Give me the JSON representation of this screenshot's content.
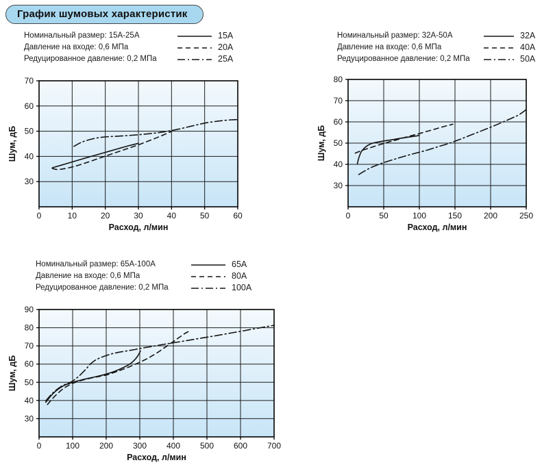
{
  "page": {
    "title": "График шумовых характеристик"
  },
  "style": {
    "plot_gradient_top": "#f4f9fd",
    "plot_gradient_bottom": "#c8e5f7",
    "line_color": "#141414",
    "grid_color": "#1c1c1c",
    "title_bg": "#a8d8f0"
  },
  "chart_data": [
    {
      "type": "line",
      "xlabel": "Расход, л/мин",
      "ylabel": "Шум, дБ",
      "xlim": [
        0,
        60
      ],
      "ylim": [
        20,
        70
      ],
      "xticks": [
        0,
        10,
        20,
        30,
        40,
        50,
        60
      ],
      "yticks": [
        30,
        40,
        50,
        60,
        70
      ],
      "grid": true,
      "legend_position": "above-left",
      "legend": [
        {
          "label": "Номинальный размер: 15А-25А",
          "dash": "solid",
          "size": "15А"
        },
        {
          "label": "Давление на входе: 0,6 МПа",
          "dash": "dashed",
          "size": "20А"
        },
        {
          "label": "Редуцированное давление: 0,2 МПа",
          "dash": "dashdot",
          "size": "25А"
        }
      ],
      "series": [
        {
          "name": "15А",
          "dash": "solid",
          "points": [
            [
              4,
              35.5
            ],
            [
              8,
              37
            ],
            [
              12,
              38.6
            ],
            [
              16,
              40.1
            ],
            [
              20,
              41.6
            ],
            [
              24,
              43.1
            ],
            [
              27,
              44.2
            ],
            [
              30,
              45.2
            ]
          ]
        },
        {
          "name": "20А",
          "dash": "dashed",
          "points": [
            [
              4,
              35.2
            ],
            [
              6,
              34.8
            ],
            [
              10,
              35.8
            ],
            [
              14,
              37.4
            ],
            [
              18,
              39.2
            ],
            [
              22,
              41
            ],
            [
              26,
              42.8
            ],
            [
              30,
              44.6
            ],
            [
              34,
              46.6
            ],
            [
              37,
              48.2
            ],
            [
              40,
              49.9
            ]
          ]
        },
        {
          "name": "25А",
          "dash": "dashdot",
          "points": [
            [
              10.5,
              44
            ],
            [
              13,
              45.7
            ],
            [
              16,
              46.9
            ],
            [
              19,
              47.6
            ],
            [
              22,
              47.9
            ],
            [
              26,
              48.2
            ],
            [
              30,
              48.6
            ],
            [
              34,
              49.1
            ],
            [
              38,
              49.8
            ],
            [
              42,
              50.8
            ],
            [
              46,
              52
            ],
            [
              50,
              53.2
            ],
            [
              54,
              54
            ],
            [
              58,
              54.5
            ],
            [
              60,
              54.6
            ]
          ]
        }
      ]
    },
    {
      "type": "line",
      "xlabel": "Расход, л/мин",
      "ylabel": "Шум, дБ",
      "xlim": [
        0,
        250
      ],
      "ylim": [
        20,
        80
      ],
      "xticks": [
        0,
        50,
        100,
        150,
        200,
        250
      ],
      "yticks": [
        30,
        40,
        50,
        60,
        70,
        80
      ],
      "grid": true,
      "legend_position": "above-left",
      "legend": [
        {
          "label": "Номинальный размер: 32А-50А",
          "dash": "solid",
          "size": "32А"
        },
        {
          "label": "Давление на входе: 0,6 МПа",
          "dash": "dashed",
          "size": "40А"
        },
        {
          "label": "Редуцированное давление: 0,2 МПа",
          "dash": "dashdot",
          "size": "50А"
        }
      ],
      "series": [
        {
          "name": "32А",
          "dash": "solid",
          "points": [
            [
              13,
              40.3
            ],
            [
              15,
              43
            ],
            [
              18,
              45.6
            ],
            [
              22,
              47.4
            ],
            [
              27,
              48.8
            ],
            [
              33,
              49.8
            ],
            [
              40,
              50.4
            ],
            [
              50,
              51
            ],
            [
              60,
              51.5
            ],
            [
              70,
              52.1
            ],
            [
              80,
              52.6
            ],
            [
              90,
              53.1
            ],
            [
              100,
              53.6
            ]
          ]
        },
        {
          "name": "40А",
          "dash": "dashed",
          "points": [
            [
              10,
              45.3
            ],
            [
              20,
              46.6
            ],
            [
              30,
              47.7
            ],
            [
              40,
              48.8
            ],
            [
              50,
              49.8
            ],
            [
              60,
              50.8
            ],
            [
              70,
              51.7
            ],
            [
              80,
              52.7
            ],
            [
              90,
              53.6
            ],
            [
              100,
              54.5
            ],
            [
              110,
              55.5
            ],
            [
              120,
              56.4
            ],
            [
              130,
              57.4
            ],
            [
              140,
              58.3
            ],
            [
              147,
              58.9
            ]
          ]
        },
        {
          "name": "50А",
          "dash": "dashdot",
          "points": [
            [
              15,
              35.2
            ],
            [
              25,
              37.2
            ],
            [
              35,
              38.9
            ],
            [
              50,
              40.8
            ],
            [
              65,
              42.4
            ],
            [
              80,
              43.9
            ],
            [
              95,
              45.3
            ],
            [
              110,
              46.6
            ],
            [
              125,
              48.2
            ],
            [
              140,
              49.7
            ],
            [
              155,
              51.5
            ],
            [
              170,
              53.5
            ],
            [
              185,
              55.5
            ],
            [
              200,
              57.5
            ],
            [
              215,
              59.6
            ],
            [
              230,
              61.8
            ],
            [
              240,
              63.4
            ],
            [
              250,
              65.8
            ]
          ]
        }
      ]
    },
    {
      "type": "line",
      "xlabel": "Расход, л/мин",
      "ylabel": "Шум, дБ",
      "xlim": [
        0,
        700
      ],
      "ylim": [
        20,
        90
      ],
      "xticks": [
        0,
        100,
        200,
        300,
        400,
        500,
        600,
        700
      ],
      "yticks": [
        30,
        40,
        50,
        60,
        70,
        80,
        90
      ],
      "grid": true,
      "legend_position": "above-left",
      "legend": [
        {
          "label": "Номинальный размер: 65А-100А",
          "dash": "solid",
          "size": "65А"
        },
        {
          "label": "Давление на входе: 0,6 МПа",
          "dash": "dashed",
          "size": "80А"
        },
        {
          "label": "Редуцированное давление: 0,2 МПа",
          "dash": "dashdot",
          "size": "100А"
        }
      ],
      "series": [
        {
          "name": "65А",
          "dash": "solid",
          "points": [
            [
              20,
              39
            ],
            [
              35,
              42.5
            ],
            [
              50,
              45.2
            ],
            [
              65,
              47.2
            ],
            [
              80,
              48.7
            ],
            [
              100,
              50
            ],
            [
              120,
              51
            ],
            [
              145,
              52.1
            ],
            [
              170,
              53.1
            ],
            [
              200,
              54.5
            ],
            [
              225,
              56
            ],
            [
              250,
              58
            ],
            [
              270,
              60
            ],
            [
              285,
              62.4
            ],
            [
              295,
              64.8
            ],
            [
              302,
              67.2
            ]
          ]
        },
        {
          "name": "80А",
          "dash": "dashed",
          "points": [
            [
              25,
              37.8
            ],
            [
              40,
              41
            ],
            [
              55,
              43.8
            ],
            [
              70,
              46.2
            ],
            [
              85,
              48
            ],
            [
              100,
              49.4
            ],
            [
              120,
              50.7
            ],
            [
              145,
              51.9
            ],
            [
              170,
              52.9
            ],
            [
              200,
              54
            ],
            [
              230,
              55.8
            ],
            [
              255,
              57.5
            ],
            [
              280,
              59.4
            ],
            [
              300,
              61
            ],
            [
              325,
              63.3
            ],
            [
              350,
              66
            ],
            [
              375,
              69.2
            ],
            [
              400,
              72.4
            ],
            [
              420,
              75
            ],
            [
              435,
              76.9
            ],
            [
              445,
              77.9
            ]
          ]
        },
        {
          "name": "100А",
          "dash": "dashdot",
          "points": [
            [
              20,
              39.8
            ],
            [
              35,
              43
            ],
            [
              50,
              45.6
            ],
            [
              65,
              47.6
            ],
            [
              80,
              49
            ],
            [
              95,
              50.1
            ],
            [
              110,
              52
            ],
            [
              125,
              54.5
            ],
            [
              140,
              57.3
            ],
            [
              152,
              59.9
            ],
            [
              165,
              61.8
            ],
            [
              180,
              63.3
            ],
            [
              200,
              64.7
            ],
            [
              220,
              65.8
            ],
            [
              240,
              66.6
            ],
            [
              260,
              67.2
            ],
            [
              285,
              68
            ],
            [
              310,
              68.9
            ],
            [
              340,
              69.8
            ],
            [
              370,
              70.8
            ],
            [
              400,
              71.7
            ],
            [
              440,
              72.9
            ],
            [
              480,
              74.2
            ],
            [
              520,
              75.4
            ],
            [
              560,
              76.7
            ],
            [
              600,
              78
            ],
            [
              650,
              79.7
            ],
            [
              700,
              81.3
            ]
          ]
        }
      ]
    }
  ]
}
